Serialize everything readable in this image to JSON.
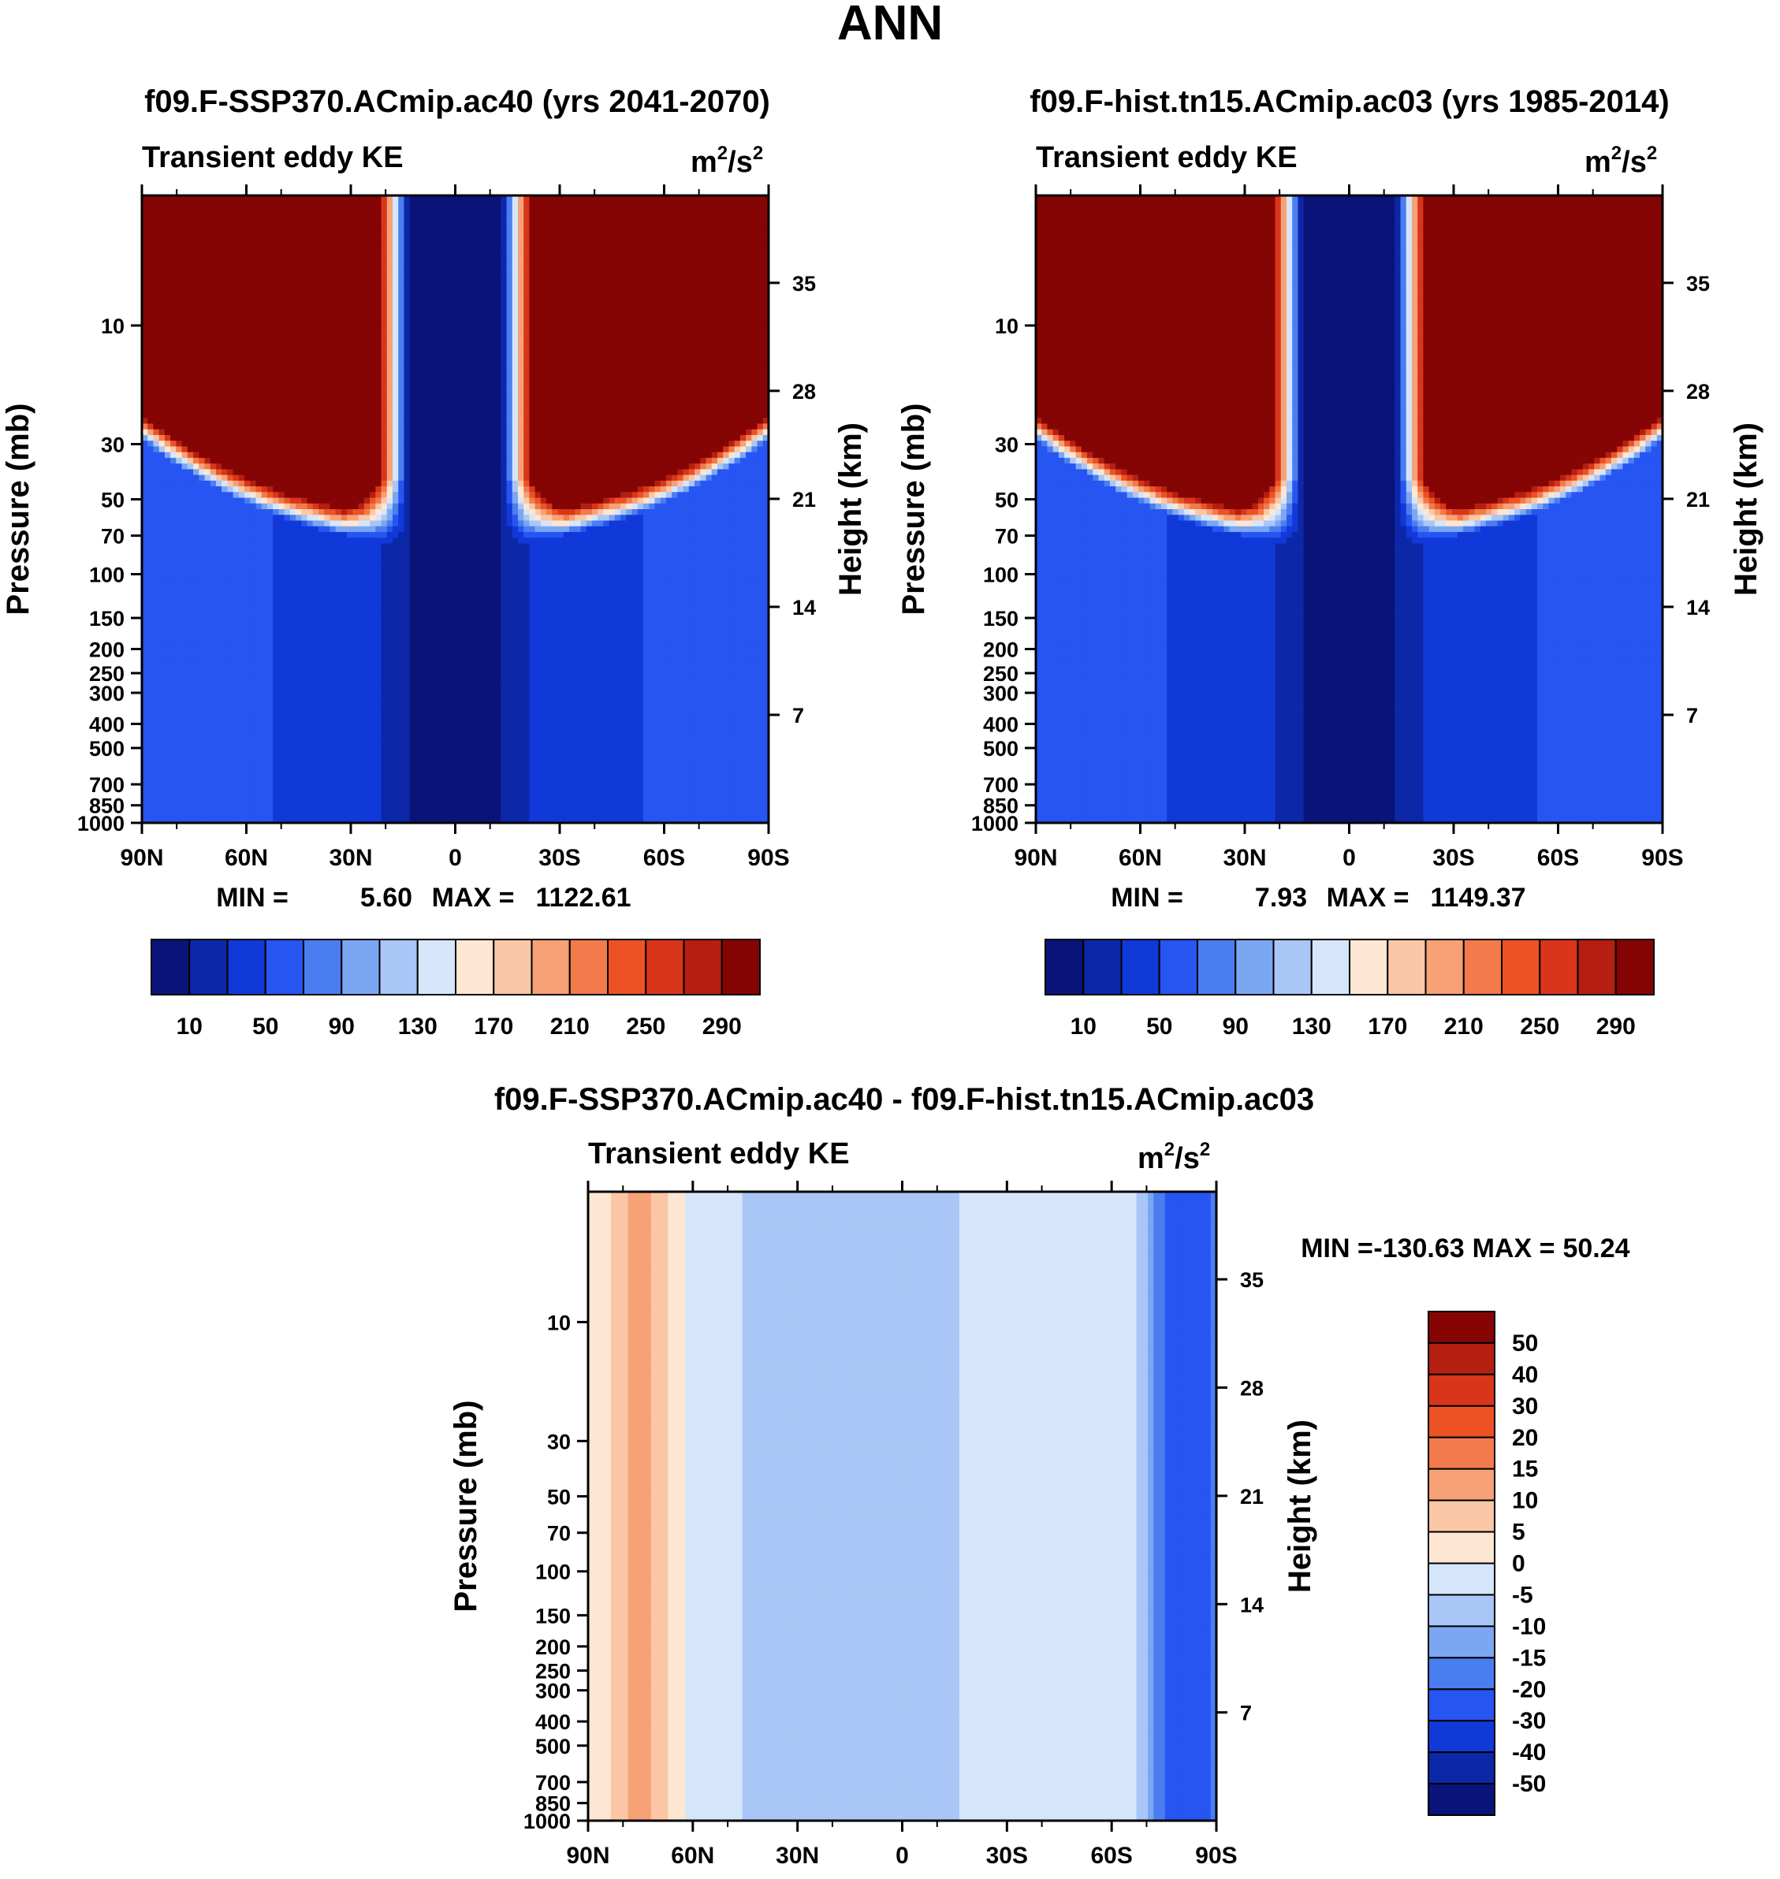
{
  "figure_title": "ANN",
  "chart_data": [
    {
      "type": "heatmap",
      "title": "f09.F-SSP370.ACmip.ac40 (yrs 2041-2070)",
      "subtitle_left": "Transient eddy KE",
      "units": "m²/s²",
      "unit_base": "m",
      "unit_exp": "2",
      "unit_mid": "/s",
      "unit_exp2": "2",
      "xlabel": "",
      "ylabel": "Pressure (mb)",
      "ylabel_right": "Height (km)",
      "x_ticks": [
        "90N",
        "60N",
        "30N",
        "0",
        "30S",
        "60S",
        "90S"
      ],
      "y_ticks": [
        "10",
        "30",
        "50",
        "70",
        "100",
        "150",
        "200",
        "250",
        "300",
        "400",
        "500",
        "700",
        "850",
        "1000"
      ],
      "y_ticks_right": [
        "35",
        "28",
        "21",
        "14",
        "7"
      ],
      "ylim": [
        1000,
        3
      ],
      "stats_min_label": "MIN =",
      "stats_min": "5.60",
      "stats_max_label": "MAX =",
      "stats_max": "1122.61",
      "colorbar_labels": [
        "10",
        "50",
        "90",
        "130",
        "170",
        "210",
        "250",
        "290"
      ],
      "colorbar_colors": [
        "#0a1478",
        "#0c27a8",
        "#1138d8",
        "#2755f2",
        "#4a7ef0",
        "#7ba6f2",
        "#a9c6f7",
        "#d6e6fa",
        "#fde6d2",
        "#fbc7a6",
        "#f7a176",
        "#f27a4b",
        "#ec5224",
        "#d8351a",
        "#b41f12",
        "#850505"
      ]
    },
    {
      "type": "heatmap",
      "title": "f09.F-hist.tn15.ACmip.ac03 (yrs 1985-2014)",
      "subtitle_left": "Transient eddy KE",
      "units": "m²/s²",
      "unit_base": "m",
      "unit_exp": "2",
      "unit_mid": "/s",
      "unit_exp2": "2",
      "xlabel": "",
      "ylabel": "Pressure (mb)",
      "ylabel_right": "Height (km)",
      "x_ticks": [
        "90N",
        "60N",
        "30N",
        "0",
        "30S",
        "60S",
        "90S"
      ],
      "y_ticks": [
        "10",
        "30",
        "50",
        "70",
        "100",
        "150",
        "200",
        "250",
        "300",
        "400",
        "500",
        "700",
        "850",
        "1000"
      ],
      "y_ticks_right": [
        "35",
        "28",
        "21",
        "14",
        "7"
      ],
      "ylim": [
        1000,
        3
      ],
      "stats_min_label": "MIN =",
      "stats_min": "7.93",
      "stats_max_label": "MAX =",
      "stats_max": "1149.37",
      "colorbar_labels": [
        "10",
        "50",
        "90",
        "130",
        "170",
        "210",
        "250",
        "290"
      ],
      "colorbar_colors": [
        "#0a1478",
        "#0c27a8",
        "#1138d8",
        "#2755f2",
        "#4a7ef0",
        "#7ba6f2",
        "#a9c6f7",
        "#d6e6fa",
        "#fde6d2",
        "#fbc7a6",
        "#f7a176",
        "#f27a4b",
        "#ec5224",
        "#d8351a",
        "#b41f12",
        "#850505"
      ]
    },
    {
      "type": "heatmap",
      "title": "f09.F-SSP370.ACmip.ac40 - f09.F-hist.tn15.ACmip.ac03",
      "subtitle_left": "Transient eddy KE",
      "units": "m²/s²",
      "unit_base": "m",
      "unit_exp": "2",
      "unit_mid": "/s",
      "unit_exp2": "2",
      "xlabel": "",
      "ylabel": "Pressure (mb)",
      "ylabel_right": "Height (km)",
      "x_ticks": [
        "90N",
        "60N",
        "30N",
        "0",
        "30S",
        "60S",
        "90S"
      ],
      "y_ticks": [
        "10",
        "30",
        "50",
        "70",
        "100",
        "150",
        "200",
        "250",
        "300",
        "400",
        "500",
        "700",
        "850",
        "1000"
      ],
      "y_ticks_right": [
        "35",
        "28",
        "21",
        "14",
        "7"
      ],
      "ylim": [
        1000,
        3
      ],
      "stats_min_label": "MIN =",
      "stats_min": "-130.63",
      "stats_max_label": "MAX =",
      "stats_max": "50.24",
      "colorbar_labels": [
        "50",
        "40",
        "30",
        "20",
        "15",
        "10",
        "5",
        "0",
        "-5",
        "-10",
        "-15",
        "-20",
        "-30",
        "-40",
        "-50"
      ],
      "colorbar_colors": [
        "#850505",
        "#b41f12",
        "#d8351a",
        "#ec5224",
        "#f27a4b",
        "#f7a176",
        "#fbc7a6",
        "#fde6d2",
        "#d6e6fa",
        "#a9c6f7",
        "#7ba6f2",
        "#4a7ef0",
        "#2755f2",
        "#1138d8",
        "#0c27a8",
        "#0a1478"
      ]
    }
  ]
}
